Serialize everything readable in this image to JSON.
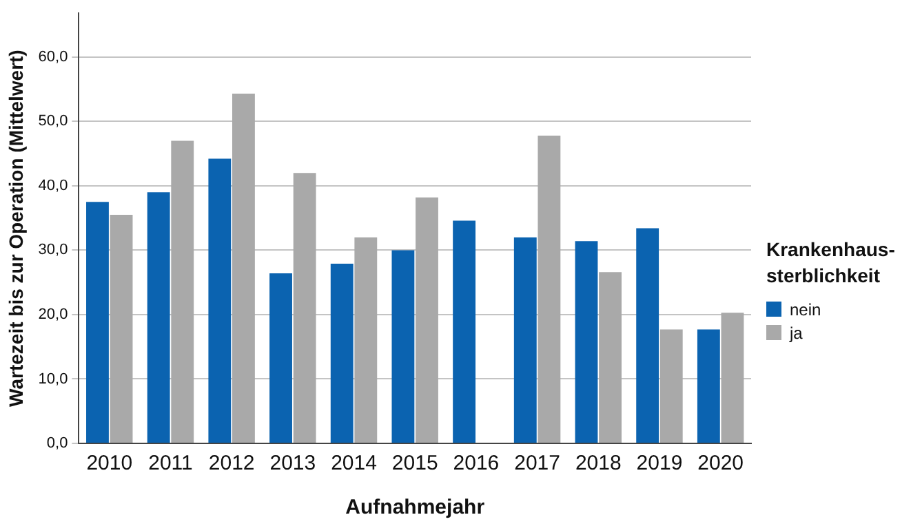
{
  "chart_data": {
    "type": "bar",
    "xlabel": "Aufnahmejahr",
    "ylabel": "Wartezeit bis zur Operation (Mittelwert)",
    "legend_title": "Krankenhaus-sterblichkeit",
    "legend": "right",
    "categories": [
      "2010",
      "2011",
      "2012",
      "2013",
      "2014",
      "2015",
      "2016",
      "2017",
      "2018",
      "2019",
      "2020"
    ],
    "series": [
      {
        "name": "nein",
        "color": "#0b63b0",
        "values": [
          37.5,
          39,
          44.2,
          26.4,
          27.9,
          30,
          34.6,
          32,
          31.4,
          33.4,
          17.7
        ]
      },
      {
        "name": "ja",
        "color": "#a9a9a9",
        "values": [
          35.5,
          47,
          54.3,
          42,
          32,
          38.2,
          null,
          47.8,
          26.6,
          17.7,
          20.3
        ]
      }
    ],
    "ylim": [
      0,
      66.8
    ],
    "yticks": [
      {
        "value": 0,
        "label": "0,0"
      },
      {
        "value": 10,
        "label": "10,0"
      },
      {
        "value": 20,
        "label": "20,0"
      },
      {
        "value": 30,
        "label": "30,0"
      },
      {
        "value": 40,
        "label": "40,0"
      },
      {
        "value": 50,
        "label": "50,0"
      },
      {
        "value": 60,
        "label": "60,0"
      }
    ],
    "grid": "y"
  }
}
